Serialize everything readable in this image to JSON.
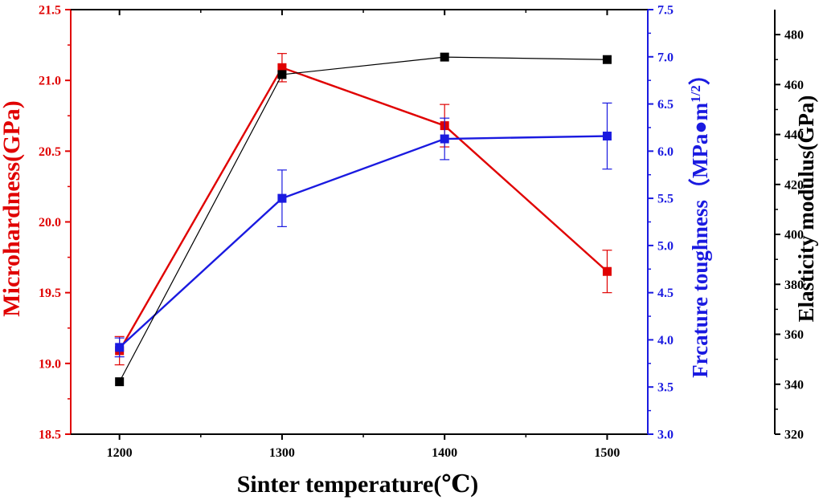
{
  "chart_data": {
    "type": "line",
    "x": [
      1200,
      1300,
      1400,
      1500
    ],
    "xlabel": "Sinter temperature(℃)",
    "xlim": [
      1170,
      1525
    ],
    "xticks": [
      "1200",
      "1300",
      "1400",
      "1500"
    ],
    "grid": false,
    "series": [
      {
        "name": "Microhardness",
        "axis": "left",
        "color": "#e00000",
        "values": [
          19.09,
          21.09,
          20.68,
          19.65
        ],
        "error": [
          0.1,
          0.1,
          0.15,
          0.15
        ]
      },
      {
        "name": "Fracture toughness",
        "axis": "right1",
        "color": "#1a1ae0",
        "values": [
          3.92,
          5.5,
          6.13,
          6.16
        ],
        "error": [
          0.1,
          0.3,
          0.22,
          0.35
        ]
      },
      {
        "name": "Elasticity modulus",
        "axis": "right2",
        "color": "#000000",
        "values": [
          341,
          464,
          471,
          470
        ],
        "error": null
      }
    ],
    "axes": {
      "left": {
        "label": "Microhardness(GPa)",
        "color": "#e00000",
        "ylim": [
          18.5,
          21.5
        ],
        "ticks": [
          "18.5",
          "19.0",
          "19.5",
          "20.0",
          "20.5",
          "21.0",
          "21.5"
        ]
      },
      "right1": {
        "label": "Frcature toughness（MPa●m",
        "label_sup": "1/2",
        "label_end": "）",
        "color": "#1a1ae0",
        "ylim": [
          3.0,
          7.5
        ],
        "ticks": [
          "3.0",
          "3.5",
          "4.0",
          "4.5",
          "5.0",
          "5.5",
          "6.0",
          "6.5",
          "7.0",
          "7.5"
        ]
      },
      "right2": {
        "label": "Elasticity modulus(GPa)",
        "color": "#000000",
        "ylim": [
          320,
          490
        ],
        "ticks": [
          "320",
          "340",
          "360",
          "380",
          "400",
          "420",
          "440",
          "460",
          "480"
        ]
      }
    }
  }
}
